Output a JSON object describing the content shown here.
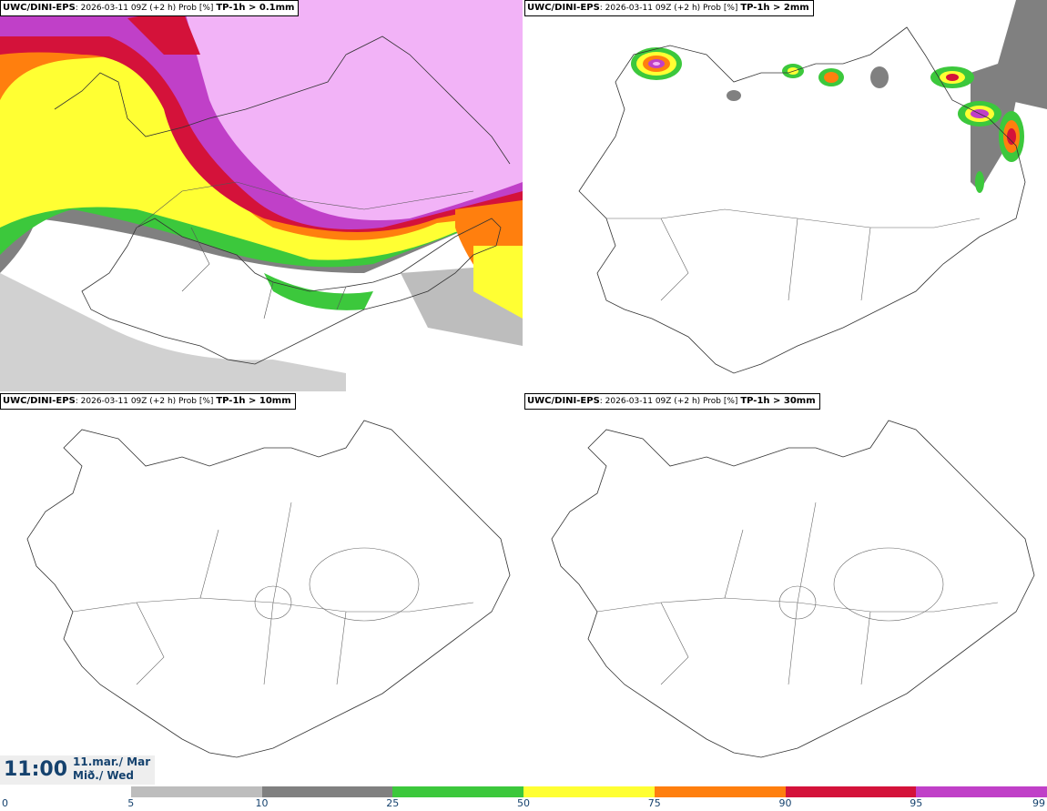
{
  "panels": [
    {
      "model": "UWC/DINI-EPS",
      "run": ": 2026-03-11 09Z (+2 h) Prob [%] ",
      "variable": "TP-1h > 0.1mm"
    },
    {
      "model": "UWC/DINI-EPS",
      "run": ": 2026-03-11 09Z (+2 h) Prob [%] ",
      "variable": "TP-1h > 2mm"
    },
    {
      "model": "UWC/DINI-EPS",
      "run": ": 2026-03-11 09Z (+2 h) Prob [%] ",
      "variable": "TP-1h > 10mm"
    },
    {
      "model": "UWC/DINI-EPS",
      "run": ": 2026-03-11 09Z (+2 h) Prob [%] ",
      "variable": "TP-1h > 30mm"
    }
  ],
  "valid_time": {
    "time": "11:00",
    "date_line": "11.mar./ Mar",
    "day_line": "Mið./ Wed"
  },
  "legend": {
    "ticks": [
      "0",
      "5",
      "10",
      "25",
      "50",
      "75",
      "90",
      "95",
      "99"
    ],
    "colors": [
      "#ffffff",
      "#bdbdbd",
      "#808080",
      "#3cc83c",
      "#ffff33",
      "#ff7f0e",
      "#d4123a",
      "#c040c8",
      "#f2b3f7"
    ]
  },
  "chart_data": {
    "type": "heatmap",
    "legend_values": [
      0,
      5,
      10,
      25,
      50,
      75,
      90,
      95,
      99
    ],
    "panels": [
      "TP-1h > 0.1mm",
      "TP-1h > 2mm",
      "TP-1h > 10mm",
      "TP-1h > 30mm"
    ]
  }
}
